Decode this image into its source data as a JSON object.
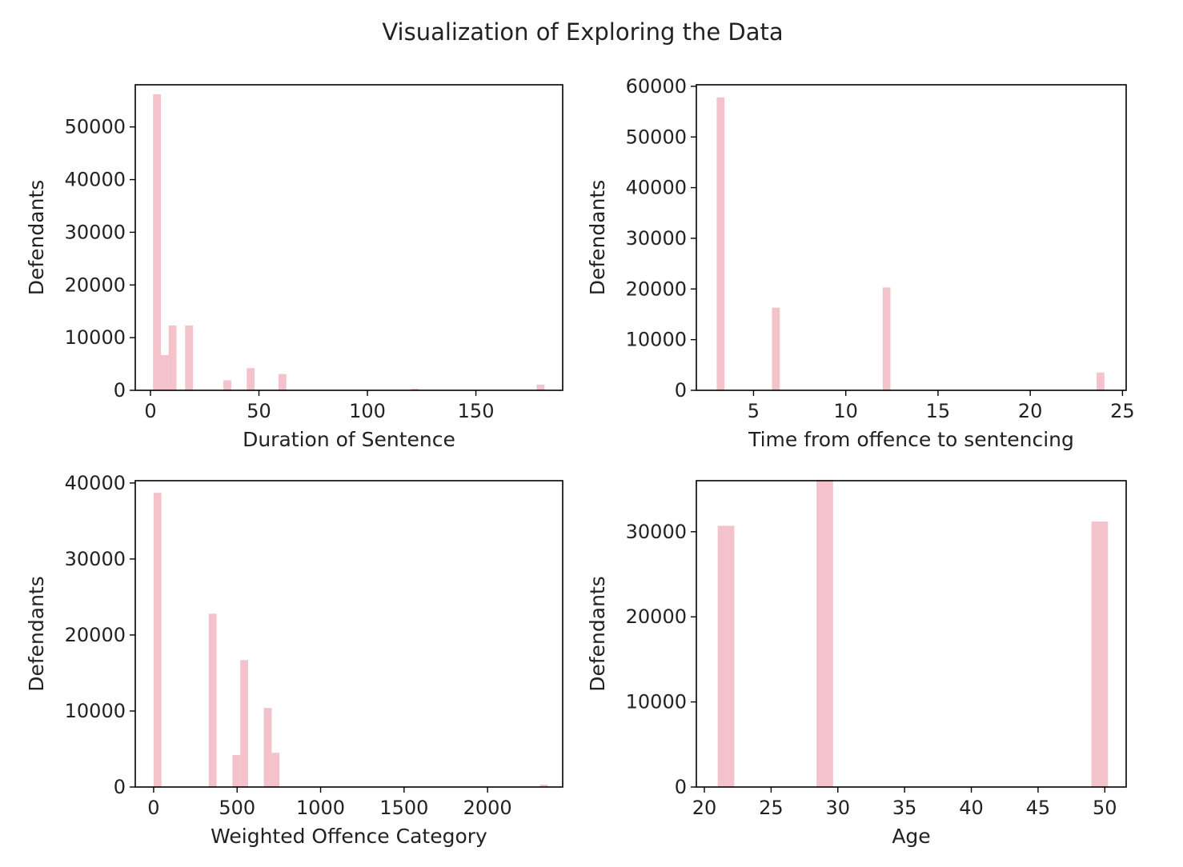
{
  "figure": {
    "title": "Visualization of Exploring the Data",
    "bar_color": "#f4c2cb"
  },
  "chart_data": [
    {
      "type": "bar",
      "histogram": true,
      "xlabel": "Duration of Sentence",
      "ylabel": "Defendants",
      "xlim": [
        -7,
        190
      ],
      "ylim": [
        0,
        58000
      ],
      "xticks": [
        0,
        50,
        100,
        150
      ],
      "yticks": [
        0,
        10000,
        20000,
        30000,
        40000,
        50000
      ],
      "bin_width": 3.6,
      "bars": [
        {
          "x": 1.2,
          "y": 56200
        },
        {
          "x": 4.8,
          "y": 6700
        },
        {
          "x": 8.4,
          "y": 12300
        },
        {
          "x": 16.0,
          "y": 12300
        },
        {
          "x": 33.6,
          "y": 1900
        },
        {
          "x": 44.4,
          "y": 4200
        },
        {
          "x": 59.0,
          "y": 3100
        },
        {
          "x": 120.0,
          "y": 300
        },
        {
          "x": 178.0,
          "y": 1100
        }
      ]
    },
    {
      "type": "bar",
      "histogram": true,
      "xlabel": "Time from offence to sentencing",
      "ylabel": "Defendants",
      "xlim": [
        1.9,
        25.2
      ],
      "ylim": [
        0,
        60300
      ],
      "xticks": [
        5,
        10,
        15,
        20,
        25
      ],
      "yticks": [
        0,
        10000,
        20000,
        30000,
        40000,
        50000,
        60000
      ],
      "bin_width": 0.42,
      "bars": [
        {
          "x": 3.0,
          "y": 57800
        },
        {
          "x": 6.0,
          "y": 16300
        },
        {
          "x": 12.0,
          "y": 20300
        },
        {
          "x": 23.6,
          "y": 3500
        }
      ]
    },
    {
      "type": "bar",
      "histogram": true,
      "xlabel": "Weighted Offence Category",
      "ylabel": "Defendants",
      "xlim": [
        -110,
        2450
      ],
      "ylim": [
        0,
        40300
      ],
      "xticks": [
        0,
        500,
        1000,
        1500,
        2000
      ],
      "yticks": [
        0,
        10000,
        20000,
        30000,
        40000
      ],
      "bin_width": 47,
      "bars": [
        {
          "x": 0,
          "y": 38700
        },
        {
          "x": 330,
          "y": 22800
        },
        {
          "x": 472,
          "y": 4200
        },
        {
          "x": 519,
          "y": 16700
        },
        {
          "x": 660,
          "y": 10400
        },
        {
          "x": 707,
          "y": 4500
        },
        {
          "x": 2314,
          "y": 300
        }
      ]
    },
    {
      "type": "bar",
      "histogram": true,
      "xlabel": "Age",
      "ylabel": "Defendants",
      "xlim": [
        19.4,
        51.6
      ],
      "ylim": [
        0,
        36000
      ],
      "xticks": [
        20,
        25,
        30,
        35,
        40,
        45,
        50
      ],
      "yticks": [
        0,
        10000,
        20000,
        30000
      ],
      "bin_width": 1.24,
      "bars": [
        {
          "x": 21.0,
          "y": 30700
        },
        {
          "x": 28.4,
          "y": 36100
        },
        {
          "x": 49.0,
          "y": 31200
        }
      ]
    }
  ]
}
